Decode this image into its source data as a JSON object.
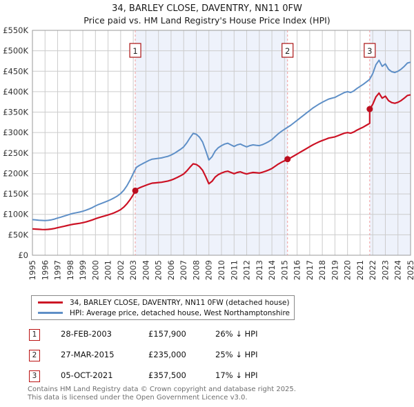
{
  "page": {
    "title": "34, BARLEY CLOSE, DAVENTRY, NN11 0FW",
    "subtitle": "Price paid vs. HM Land Registry's House Price Index (HPI)"
  },
  "chart_data": {
    "type": "line",
    "title": "34, BARLEY CLOSE, DAVENTRY, NN11 0FW",
    "subtitle": "Price paid vs. HM Land Registry's House Price Index (HPI)",
    "values_unit": "GBP thousands",
    "x_range": [
      1995,
      2025
    ],
    "y_range_k": [
      0,
      550
    ],
    "y_tick_step_k": 50,
    "grid": true,
    "legend_position": "bottom",
    "colors": {
      "property_line": "#cc1124",
      "hpi_line": "#5e8fc7",
      "sale_dot": "#bb0e1f",
      "dashed_marker_line": "#f19b9b",
      "marker_box_border": "#aa1111",
      "shaded_region_fill": "#eef2fb",
      "grid_line": "#cccccc",
      "plot_border": "#9a9a9a"
    },
    "y_tick_labels": [
      "£0",
      "£50K",
      "£100K",
      "£150K",
      "£200K",
      "£250K",
      "£300K",
      "£350K",
      "£400K",
      "£450K",
      "£500K",
      "£550K"
    ],
    "x_tick_labels": [
      "1995",
      "1996",
      "1997",
      "1998",
      "1999",
      "2000",
      "2001",
      "2002",
      "2003",
      "2004",
      "2005",
      "2006",
      "2007",
      "2008",
      "2009",
      "2010",
      "2011",
      "2012",
      "2013",
      "2014",
      "2015",
      "2016",
      "2017",
      "2018",
      "2019",
      "2020",
      "2021",
      "2022",
      "2023",
      "2024",
      "2025"
    ],
    "shaded_regions": [
      [
        2003.16,
        2015.24
      ],
      [
        2021.76,
        2025
      ]
    ],
    "sales": [
      {
        "num": "1",
        "x": 2003.16,
        "price_k": 157.9
      },
      {
        "num": "2",
        "x": 2015.24,
        "price_k": 235.0
      },
      {
        "num": "3",
        "x": 2021.76,
        "price_k": 357.5
      }
    ],
    "series": [
      {
        "name": "34, BARLEY CLOSE, DAVENTRY, NN11 0FW (detached house)",
        "color": "#cc1124",
        "points": [
          [
            1995.0,
            64.4
          ],
          [
            1995.25,
            63.9
          ],
          [
            1995.5,
            63.4
          ],
          [
            1995.75,
            63.0
          ],
          [
            1996.0,
            62.8
          ],
          [
            1996.25,
            63.2
          ],
          [
            1996.5,
            64.1
          ],
          [
            1996.75,
            65.4
          ],
          [
            1997.0,
            67.3
          ],
          [
            1997.25,
            69.0
          ],
          [
            1997.5,
            70.7
          ],
          [
            1997.75,
            72.6
          ],
          [
            1998.0,
            74.4
          ],
          [
            1998.25,
            75.9
          ],
          [
            1998.5,
            77.0
          ],
          [
            1998.75,
            78.1
          ],
          [
            1999.0,
            79.6
          ],
          [
            1999.25,
            81.5
          ],
          [
            1999.5,
            83.8
          ],
          [
            1999.75,
            86.3
          ],
          [
            2000.0,
            89.2
          ],
          [
            2000.25,
            91.8
          ],
          [
            2000.5,
            94.1
          ],
          [
            2000.75,
            96.3
          ],
          [
            2001.0,
            98.5
          ],
          [
            2001.25,
            101.1
          ],
          [
            2001.5,
            104.0
          ],
          [
            2001.75,
            107.4
          ],
          [
            2002.0,
            111.7
          ],
          [
            2002.25,
            117.7
          ],
          [
            2002.5,
            125.8
          ],
          [
            2002.75,
            136.2
          ],
          [
            2003.0,
            148.0
          ],
          [
            2003.16,
            157.9
          ],
          [
            2003.25,
            161.3
          ],
          [
            2003.5,
            165.0
          ],
          [
            2003.75,
            168.0
          ],
          [
            2004.0,
            171.0
          ],
          [
            2004.25,
            174.0
          ],
          [
            2004.5,
            176.3
          ],
          [
            2004.75,
            177.0
          ],
          [
            2005.0,
            177.8
          ],
          [
            2005.25,
            178.5
          ],
          [
            2005.5,
            180.0
          ],
          [
            2005.75,
            181.5
          ],
          [
            2006.0,
            183.8
          ],
          [
            2006.25,
            186.8
          ],
          [
            2006.5,
            190.5
          ],
          [
            2006.75,
            194.3
          ],
          [
            2007.0,
            198.8
          ],
          [
            2007.25,
            206.3
          ],
          [
            2007.5,
            215.3
          ],
          [
            2007.75,
            223.5
          ],
          [
            2008.0,
            222.0
          ],
          [
            2008.25,
            216.8
          ],
          [
            2008.5,
            207.8
          ],
          [
            2008.75,
            192.0
          ],
          [
            2009.0,
            174.8
          ],
          [
            2009.25,
            180.8
          ],
          [
            2009.5,
            191.3
          ],
          [
            2009.75,
            197.3
          ],
          [
            2010.0,
            201.0
          ],
          [
            2010.25,
            204.0
          ],
          [
            2010.5,
            205.5
          ],
          [
            2010.75,
            202.5
          ],
          [
            2011.0,
            199.5
          ],
          [
            2011.25,
            202.5
          ],
          [
            2011.5,
            204.0
          ],
          [
            2011.75,
            201.0
          ],
          [
            2012.0,
            198.8
          ],
          [
            2012.25,
            201.0
          ],
          [
            2012.5,
            202.5
          ],
          [
            2012.75,
            201.8
          ],
          [
            2013.0,
            201.0
          ],
          [
            2013.25,
            202.9
          ],
          [
            2013.5,
            205.5
          ],
          [
            2013.75,
            208.5
          ],
          [
            2014.0,
            212.3
          ],
          [
            2014.25,
            217.5
          ],
          [
            2014.5,
            222.8
          ],
          [
            2014.75,
            227.3
          ],
          [
            2015.0,
            231.0
          ],
          [
            2015.24,
            235.0
          ],
          [
            2015.5,
            238.5
          ],
          [
            2015.75,
            243.0
          ],
          [
            2016.0,
            247.5
          ],
          [
            2016.25,
            252.0
          ],
          [
            2016.5,
            256.5
          ],
          [
            2016.75,
            261.0
          ],
          [
            2017.0,
            265.5
          ],
          [
            2017.25,
            270.0
          ],
          [
            2017.5,
            273.8
          ],
          [
            2017.75,
            277.5
          ],
          [
            2018.0,
            280.5
          ],
          [
            2018.25,
            283.5
          ],
          [
            2018.5,
            286.5
          ],
          [
            2018.75,
            288.0
          ],
          [
            2019.0,
            289.5
          ],
          [
            2019.25,
            292.5
          ],
          [
            2019.5,
            295.5
          ],
          [
            2019.75,
            298.5
          ],
          [
            2020.0,
            300.0
          ],
          [
            2020.25,
            298.5
          ],
          [
            2020.5,
            301.5
          ],
          [
            2020.75,
            306.0
          ],
          [
            2021.0,
            309.8
          ],
          [
            2021.25,
            313.5
          ],
          [
            2021.5,
            318.0
          ],
          [
            2021.76,
            322.5
          ],
          [
            2021.76,
            357.5
          ],
          [
            2022.0,
            369.1
          ],
          [
            2022.25,
            387.4
          ],
          [
            2022.5,
            396.6
          ],
          [
            2022.75,
            384.1
          ],
          [
            2023.0,
            389.1
          ],
          [
            2023.25,
            378.3
          ],
          [
            2023.5,
            373.3
          ],
          [
            2023.75,
            371.6
          ],
          [
            2024.0,
            374.1
          ],
          [
            2024.25,
            378.3
          ],
          [
            2024.5,
            384.1
          ],
          [
            2024.75,
            390.7
          ],
          [
            2025.0,
            392.4
          ]
        ]
      },
      {
        "name": "HPI: Average price, detached house, West Northamptonshire",
        "color": "#5e8fc7",
        "points": [
          [
            1995.0,
            87.0
          ],
          [
            1995.25,
            86.4
          ],
          [
            1995.5,
            85.7
          ],
          [
            1995.75,
            85.2
          ],
          [
            1996.0,
            84.8
          ],
          [
            1996.25,
            85.4
          ],
          [
            1996.5,
            86.6
          ],
          [
            1996.75,
            88.4
          ],
          [
            1997.0,
            91.0
          ],
          [
            1997.25,
            93.2
          ],
          [
            1997.5,
            95.6
          ],
          [
            1997.75,
            98.1
          ],
          [
            1998.0,
            100.6
          ],
          [
            1998.25,
            102.6
          ],
          [
            1998.5,
            104.1
          ],
          [
            1998.75,
            105.6
          ],
          [
            1999.0,
            107.6
          ],
          [
            1999.25,
            110.2
          ],
          [
            1999.5,
            113.2
          ],
          [
            1999.75,
            116.6
          ],
          [
            2000.0,
            120.6
          ],
          [
            2000.25,
            124.1
          ],
          [
            2000.5,
            127.1
          ],
          [
            2000.75,
            130.1
          ],
          [
            2001.0,
            133.1
          ],
          [
            2001.25,
            136.6
          ],
          [
            2001.5,
            140.6
          ],
          [
            2001.75,
            145.1
          ],
          [
            2002.0,
            151.0
          ],
          [
            2002.25,
            159.0
          ],
          [
            2002.5,
            170.0
          ],
          [
            2002.75,
            184.0
          ],
          [
            2003.0,
            200.0
          ],
          [
            2003.25,
            215.0
          ],
          [
            2003.5,
            220.0
          ],
          [
            2003.75,
            224.0
          ],
          [
            2004.0,
            228.0
          ],
          [
            2004.25,
            232.0
          ],
          [
            2004.5,
            235.0
          ],
          [
            2004.75,
            236.0
          ],
          [
            2005.0,
            237.0
          ],
          [
            2005.25,
            238.0
          ],
          [
            2005.5,
            240.0
          ],
          [
            2005.75,
            242.0
          ],
          [
            2006.0,
            245.0
          ],
          [
            2006.25,
            249.0
          ],
          [
            2006.5,
            254.0
          ],
          [
            2006.75,
            259.0
          ],
          [
            2007.0,
            265.0
          ],
          [
            2007.25,
            275.0
          ],
          [
            2007.5,
            287.0
          ],
          [
            2007.75,
            298.0
          ],
          [
            2008.0,
            296.0
          ],
          [
            2008.25,
            289.0
          ],
          [
            2008.5,
            277.0
          ],
          [
            2008.75,
            256.0
          ],
          [
            2009.0,
            233.0
          ],
          [
            2009.25,
            241.0
          ],
          [
            2009.5,
            255.0
          ],
          [
            2009.75,
            263.0
          ],
          [
            2010.0,
            268.0
          ],
          [
            2010.25,
            272.0
          ],
          [
            2010.5,
            274.0
          ],
          [
            2010.75,
            270.0
          ],
          [
            2011.0,
            266.0
          ],
          [
            2011.25,
            270.0
          ],
          [
            2011.5,
            272.0
          ],
          [
            2011.75,
            268.0
          ],
          [
            2012.0,
            265.0
          ],
          [
            2012.25,
            268.0
          ],
          [
            2012.5,
            270.0
          ],
          [
            2012.75,
            269.0
          ],
          [
            2013.0,
            268.0
          ],
          [
            2013.25,
            270.5
          ],
          [
            2013.5,
            274.0
          ],
          [
            2013.75,
            278.0
          ],
          [
            2014.0,
            283.0
          ],
          [
            2014.25,
            290.0
          ],
          [
            2014.5,
            297.0
          ],
          [
            2014.75,
            303.0
          ],
          [
            2015.0,
            308.0
          ],
          [
            2015.25,
            313.0
          ],
          [
            2015.5,
            318.0
          ],
          [
            2015.75,
            324.0
          ],
          [
            2016.0,
            330.0
          ],
          [
            2016.25,
            336.0
          ],
          [
            2016.5,
            342.0
          ],
          [
            2016.75,
            348.0
          ],
          [
            2017.0,
            354.0
          ],
          [
            2017.25,
            360.0
          ],
          [
            2017.5,
            365.0
          ],
          [
            2017.75,
            370.0
          ],
          [
            2018.0,
            374.0
          ],
          [
            2018.25,
            378.0
          ],
          [
            2018.5,
            382.0
          ],
          [
            2018.75,
            384.0
          ],
          [
            2019.0,
            386.0
          ],
          [
            2019.25,
            390.0
          ],
          [
            2019.5,
            394.0
          ],
          [
            2019.75,
            398.0
          ],
          [
            2020.0,
            400.0
          ],
          [
            2020.25,
            398.0
          ],
          [
            2020.5,
            402.0
          ],
          [
            2020.75,
            408.0
          ],
          [
            2021.0,
            413.0
          ],
          [
            2021.25,
            418.0
          ],
          [
            2021.5,
            424.0
          ],
          [
            2021.75,
            430.0
          ],
          [
            2022.0,
            444.0
          ],
          [
            2022.25,
            466.0
          ],
          [
            2022.5,
            477.0
          ],
          [
            2022.75,
            462.0
          ],
          [
            2023.0,
            468.0
          ],
          [
            2023.25,
            455.0
          ],
          [
            2023.5,
            449.0
          ],
          [
            2023.75,
            447.0
          ],
          [
            2024.0,
            450.0
          ],
          [
            2024.25,
            455.0
          ],
          [
            2024.5,
            462.0
          ],
          [
            2024.75,
            470.0
          ],
          [
            2025.0,
            472.0
          ]
        ]
      }
    ]
  },
  "transactions": [
    {
      "num": "1",
      "date": "28-FEB-2003",
      "price": "£157,900",
      "hpi_diff": "26% ↓ HPI"
    },
    {
      "num": "2",
      "date": "27-MAR-2015",
      "price": "£235,000",
      "hpi_diff": "25% ↓ HPI"
    },
    {
      "num": "3",
      "date": "05-OCT-2021",
      "price": "£357,500",
      "hpi_diff": "17% ↓ HPI"
    }
  ],
  "footer": {
    "line1": "Contains HM Land Registry data © Crown copyright and database right 2025.",
    "line2": "This data is licensed under the Open Government Licence v3.0."
  }
}
